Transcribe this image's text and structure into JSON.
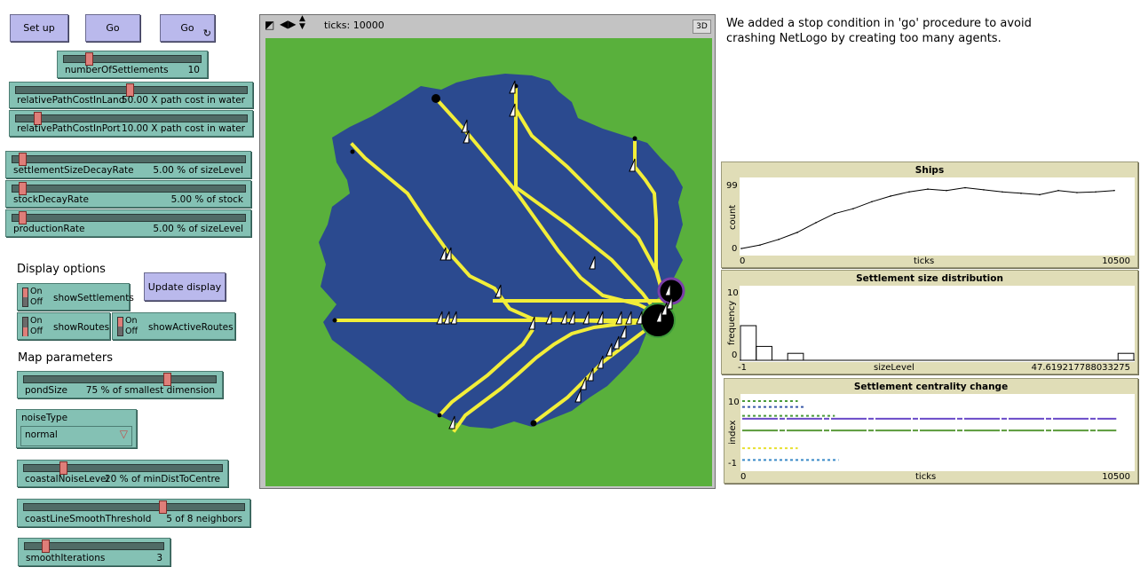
{
  "buttons": {
    "setup": "Set up",
    "go_once": "Go",
    "go_forever": "Go",
    "update_display": "Update display"
  },
  "sliders": [
    {
      "name": "numberOfSettlements",
      "value": "10"
    },
    {
      "name": "relativePathCostInLand",
      "value": "50.00 X path cost in water"
    },
    {
      "name": "relativePathCostInPort",
      "value": "10.00 X path cost in water"
    },
    {
      "name": "settlementSizeDecayRate",
      "value": "5.00 % of sizeLevel"
    },
    {
      "name": "stockDecayRate",
      "value": "5.00 % of stock"
    },
    {
      "name": "productionRate",
      "value": "5.00 % of sizeLevel"
    },
    {
      "name": "pondSize",
      "value": "75 % of smallest dimension"
    },
    {
      "name": "coastalNoiseLevel",
      "value": "20 % of minDistToCentre"
    },
    {
      "name": "coastLineSmoothThreshold",
      "value": "5 of 8 neighbors"
    },
    {
      "name": "smoothIterations",
      "value": "3"
    }
  ],
  "labels": {
    "display_options": "Display options",
    "map_parameters": "Map parameters",
    "note": "We added a stop condition in 'go' procedure to avoid crashing NetLogo by creating too many agents."
  },
  "switches": [
    {
      "name": "showSettlements",
      "on": "On",
      "off": "Off"
    },
    {
      "name": "showRoutes",
      "on": "On",
      "off": "Off"
    },
    {
      "name": "showActiveRoutes",
      "on": "On",
      "off": "Off"
    }
  ],
  "chooser": {
    "name": "noiseType",
    "value": "normal"
  },
  "view": {
    "ticks": "ticks: 10000",
    "three_d": "3D",
    "icons": [
      "normal-speed-icon",
      "step-left-icon",
      "speed-updown-icon"
    ]
  },
  "colors": {
    "land": "#59b03c",
    "water": "#2b4a8f",
    "route": "#f2ee39",
    "button": "#bab9ec",
    "slider": "#84c1b4",
    "plot_frame": "#e0ddb7"
  },
  "plots": {
    "ships": {
      "title": "Ships",
      "ymax": "99",
      "ymin": "0",
      "xmin": "0",
      "xmax": "10500",
      "ylabel": "count",
      "xlabel": "ticks"
    },
    "size": {
      "title": "Settlement size distribution",
      "ymax": "10",
      "ymin": "0",
      "xmin": "-1",
      "xmax": "47.619217788033275",
      "ylabel": "frequency",
      "xlabel": "sizeLevel"
    },
    "centrality": {
      "title": "Settlement centrality change",
      "ymax": "10",
      "ymin": "-1",
      "xmin": "0",
      "xmax": "10500",
      "ylabel": "index",
      "xlabel": "ticks"
    }
  },
  "chart_data": [
    {
      "type": "line",
      "title": "Ships",
      "xlabel": "ticks",
      "ylabel": "count",
      "xlim": [
        0,
        10500
      ],
      "ylim": [
        0,
        99
      ],
      "series": [
        {
          "x": [
            0,
            500,
            1000,
            1500,
            2000,
            2500,
            3000,
            3500,
            4000,
            4500,
            5000,
            5500,
            6000,
            6500,
            7000,
            7500,
            8000,
            8500,
            9000,
            9500,
            10000
          ],
          "values": [
            5,
            10,
            18,
            28,
            42,
            55,
            62,
            72,
            80,
            86,
            90,
            88,
            92,
            89,
            86,
            84,
            82,
            88,
            85,
            86,
            88
          ]
        }
      ]
    },
    {
      "type": "bar",
      "title": "Settlement size distribution",
      "xlabel": "sizeLevel",
      "ylabel": "frequency",
      "xlim": [
        -1,
        47.619217788033275
      ],
      "ylim": [
        0,
        10
      ],
      "categories": [
        "-1",
        "1",
        "3",
        "5",
        "7",
        "9",
        "11",
        "13",
        "15",
        "17",
        "19",
        "21",
        "23",
        "25",
        "27",
        "29",
        "31",
        "33",
        "35",
        "37",
        "39",
        "41",
        "43",
        "45",
        "47"
      ],
      "values": [
        5,
        2,
        0,
        1,
        0,
        0,
        0,
        0,
        0,
        0,
        0,
        0,
        0,
        0,
        0,
        0,
        0,
        0,
        0,
        0,
        0,
        0,
        0,
        0,
        1
      ]
    },
    {
      "type": "scatter",
      "title": "Settlement centrality change",
      "xlabel": "ticks",
      "ylabel": "index",
      "xlim": [
        0,
        10500
      ],
      "ylim": [
        -1,
        10
      ],
      "series": [
        {
          "color": "#4a9a3a",
          "y": 10,
          "x_start": 0,
          "x_end": 1500
        },
        {
          "color": "#3a5aa8",
          "y": 9,
          "x_start": 0,
          "x_end": 1700
        },
        {
          "color": "#4a9a3a",
          "y": 7.5,
          "x_start": 0,
          "x_end": 2500
        },
        {
          "color": "#6a4ac8",
          "y": 7,
          "x_start": 0,
          "x_end": 10100
        },
        {
          "color": "#5a9a3a",
          "y": 5,
          "x_start": 0,
          "x_end": 10100
        },
        {
          "color": "#e8e030",
          "y": 2,
          "x_start": 0,
          "x_end": 1500
        },
        {
          "color": "#3a8ac8",
          "y": 0,
          "x_start": 0,
          "x_end": 2600
        }
      ]
    }
  ]
}
